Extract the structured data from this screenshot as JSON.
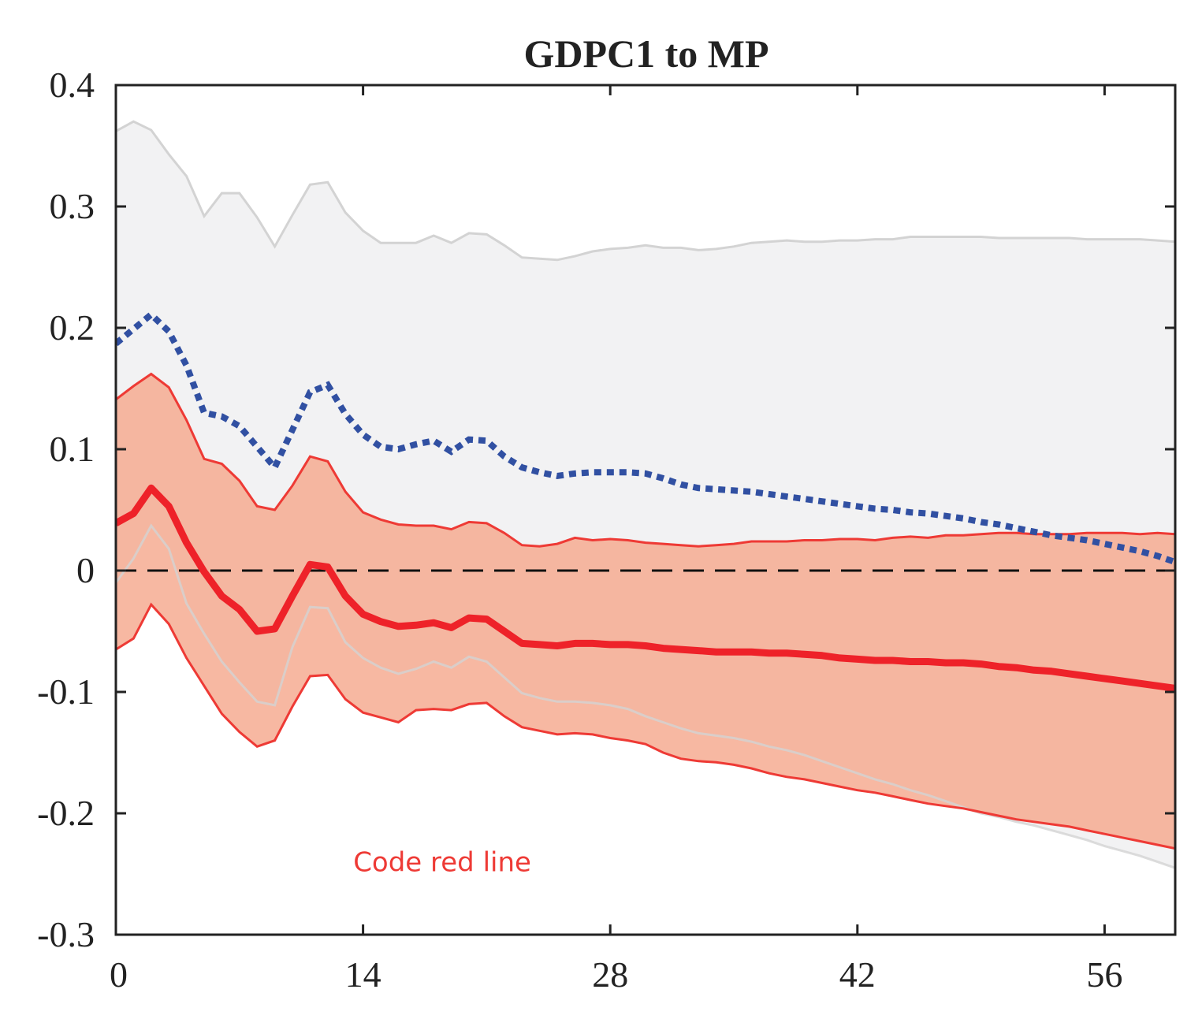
{
  "chart_data": {
    "type": "line",
    "title": "GDPC1 to MP",
    "xlabel": "",
    "ylabel": "",
    "xlim": [
      0,
      60
    ],
    "ylim": [
      -0.3,
      0.4
    ],
    "xticks": [
      0,
      14,
      28,
      42,
      56
    ],
    "xtick_labels": [
      "0",
      "14",
      "28",
      "42",
      "56"
    ],
    "yticks": [
      0.4,
      0.3,
      0.2,
      0.1,
      0,
      -0.1,
      -0.2,
      -0.3
    ],
    "ytick_labels": [
      "0.4",
      "0.3",
      "0.2",
      "0.1",
      "0",
      "-0.1",
      "-0.2",
      "-0.3"
    ],
    "grid": false,
    "legend": "none",
    "annotation": {
      "text": "Code red line",
      "x": 13,
      "y": -0.24
    },
    "colors": {
      "red_line": "#ee2229",
      "red_band_fill": "#f5a88e",
      "red_band_edge": "#ee3a35",
      "grey_band_fill": "#f2f2f3",
      "grey_band_edge": "#d3d3d3",
      "blue_dotted": "#3150a2",
      "zero_line": "#111111",
      "annotation": "#ee3a35"
    },
    "x": [
      0,
      1,
      2,
      3,
      4,
      5,
      6,
      7,
      8,
      9,
      10,
      11,
      12,
      13,
      14,
      15,
      16,
      17,
      18,
      19,
      20,
      21,
      22,
      23,
      24,
      25,
      26,
      27,
      28,
      29,
      30,
      31,
      32,
      33,
      34,
      35,
      36,
      37,
      38,
      39,
      40,
      41,
      42,
      43,
      44,
      45,
      46,
      47,
      48,
      49,
      50,
      51,
      52,
      53,
      54,
      55,
      56,
      57,
      58,
      59,
      60
    ],
    "series": [
      {
        "role": "grey_band_upper",
        "values": [
          0.362,
          0.37,
          0.363,
          0.343,
          0.325,
          0.292,
          0.311,
          0.311,
          0.291,
          0.267,
          0.293,
          0.318,
          0.32,
          0.295,
          0.28,
          0.27,
          0.27,
          0.27,
          0.276,
          0.27,
          0.278,
          0.277,
          0.268,
          0.258,
          0.257,
          0.256,
          0.259,
          0.263,
          0.265,
          0.266,
          0.268,
          0.266,
          0.266,
          0.264,
          0.265,
          0.267,
          0.27,
          0.271,
          0.272,
          0.271,
          0.271,
          0.272,
          0.272,
          0.273,
          0.273,
          0.275,
          0.275,
          0.275,
          0.275,
          0.275,
          0.274,
          0.274,
          0.274,
          0.274,
          0.274,
          0.273,
          0.273,
          0.273,
          0.273,
          0.272,
          0.271
        ]
      },
      {
        "role": "grey_band_lower",
        "values": [
          -0.01,
          0.01,
          0.037,
          0.018,
          -0.027,
          -0.052,
          -0.075,
          -0.092,
          -0.108,
          -0.111,
          -0.063,
          -0.03,
          -0.031,
          -0.059,
          -0.072,
          -0.08,
          -0.085,
          -0.081,
          -0.075,
          -0.08,
          -0.071,
          -0.075,
          -0.088,
          -0.101,
          -0.105,
          -0.108,
          -0.108,
          -0.109,
          -0.111,
          -0.114,
          -0.12,
          -0.125,
          -0.13,
          -0.134,
          -0.136,
          -0.138,
          -0.141,
          -0.145,
          -0.148,
          -0.152,
          -0.157,
          -0.162,
          -0.167,
          -0.172,
          -0.176,
          -0.181,
          -0.185,
          -0.19,
          -0.195,
          -0.2,
          -0.203,
          -0.207,
          -0.21,
          -0.214,
          -0.218,
          -0.222,
          -0.227,
          -0.231,
          -0.235,
          -0.24,
          -0.245
        ]
      },
      {
        "role": "red_band_upper",
        "values": [
          0.141,
          0.152,
          0.162,
          0.151,
          0.124,
          0.092,
          0.088,
          0.074,
          0.053,
          0.05,
          0.07,
          0.094,
          0.09,
          0.065,
          0.048,
          0.042,
          0.038,
          0.037,
          0.037,
          0.034,
          0.04,
          0.039,
          0.031,
          0.021,
          0.02,
          0.022,
          0.027,
          0.025,
          0.026,
          0.025,
          0.023,
          0.022,
          0.021,
          0.02,
          0.021,
          0.022,
          0.024,
          0.024,
          0.024,
          0.025,
          0.025,
          0.026,
          0.026,
          0.025,
          0.027,
          0.028,
          0.027,
          0.029,
          0.029,
          0.03,
          0.031,
          0.031,
          0.03,
          0.03,
          0.03,
          0.031,
          0.031,
          0.031,
          0.03,
          0.031,
          0.03
        ]
      },
      {
        "role": "red_band_lower",
        "values": [
          -0.065,
          -0.056,
          -0.028,
          -0.044,
          -0.072,
          -0.095,
          -0.118,
          -0.133,
          -0.145,
          -0.14,
          -0.112,
          -0.087,
          -0.086,
          -0.106,
          -0.117,
          -0.121,
          -0.125,
          -0.115,
          -0.114,
          -0.115,
          -0.11,
          -0.109,
          -0.12,
          -0.129,
          -0.132,
          -0.135,
          -0.134,
          -0.135,
          -0.138,
          -0.14,
          -0.143,
          -0.15,
          -0.155,
          -0.157,
          -0.158,
          -0.16,
          -0.163,
          -0.167,
          -0.17,
          -0.172,
          -0.175,
          -0.178,
          -0.181,
          -0.183,
          -0.186,
          -0.189,
          -0.192,
          -0.194,
          -0.196,
          -0.199,
          -0.202,
          -0.205,
          -0.207,
          -0.209,
          -0.211,
          -0.214,
          -0.217,
          -0.22,
          -0.223,
          -0.226,
          -0.229
        ]
      },
      {
        "role": "red_median",
        "values": [
          0.039,
          0.047,
          0.068,
          0.053,
          0.023,
          -0.001,
          -0.021,
          -0.032,
          -0.05,
          -0.048,
          -0.021,
          0.005,
          0.003,
          -0.021,
          -0.036,
          -0.042,
          -0.046,
          -0.045,
          -0.043,
          -0.047,
          -0.039,
          -0.04,
          -0.05,
          -0.06,
          -0.061,
          -0.062,
          -0.06,
          -0.06,
          -0.061,
          -0.061,
          -0.062,
          -0.064,
          -0.065,
          -0.066,
          -0.067,
          -0.067,
          -0.067,
          -0.068,
          -0.068,
          -0.069,
          -0.07,
          -0.072,
          -0.073,
          -0.074,
          -0.074,
          -0.075,
          -0.075,
          -0.076,
          -0.076,
          -0.077,
          -0.079,
          -0.08,
          -0.082,
          -0.083,
          -0.085,
          -0.087,
          -0.089,
          -0.091,
          -0.093,
          -0.095,
          -0.097
        ]
      },
      {
        "role": "blue_dotted",
        "values": [
          0.187,
          0.199,
          0.211,
          0.197,
          0.169,
          0.13,
          0.127,
          0.119,
          0.102,
          0.085,
          0.116,
          0.147,
          0.153,
          0.129,
          0.112,
          0.102,
          0.1,
          0.104,
          0.107,
          0.098,
          0.108,
          0.107,
          0.094,
          0.085,
          0.081,
          0.078,
          0.08,
          0.081,
          0.081,
          0.081,
          0.08,
          0.076,
          0.071,
          0.068,
          0.067,
          0.066,
          0.065,
          0.063,
          0.061,
          0.059,
          0.057,
          0.055,
          0.053,
          0.051,
          0.05,
          0.048,
          0.047,
          0.045,
          0.043,
          0.04,
          0.038,
          0.035,
          0.032,
          0.029,
          0.027,
          0.025,
          0.022,
          0.019,
          0.016,
          0.012,
          0.007
        ]
      }
    ]
  }
}
